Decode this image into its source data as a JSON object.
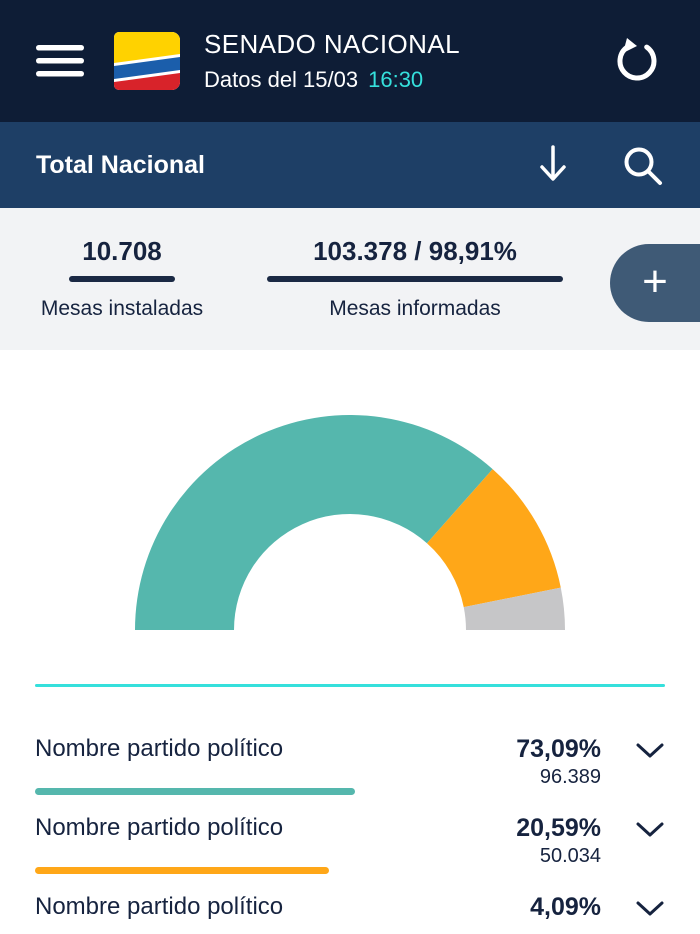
{
  "header": {
    "title": "SENADO NACIONAL",
    "subtitle": "Datos del 15/03",
    "time": "16:30"
  },
  "subheader": {
    "title": "Total Nacional"
  },
  "stats": {
    "installed": {
      "value": "10.708",
      "label": "Mesas instaladas"
    },
    "reported": {
      "value": "103.378 / 98,91%",
      "label": "Mesas informadas"
    },
    "add_label": "+"
  },
  "chart_data": {
    "type": "pie",
    "variant": "half-donut-gauge",
    "start_angle_deg": 180,
    "end_angle_deg": 0,
    "segments": [
      {
        "label": "Nombre partido político",
        "value": 73.09,
        "color": "#55b7ad"
      },
      {
        "label": "Nombre partido político",
        "value": 20.59,
        "color": "#ffa718"
      },
      {
        "label": "",
        "value": 6.32,
        "color": "#c6c6c8"
      }
    ]
  },
  "parties": [
    {
      "name": "Nombre partido político",
      "percent": "73,09%",
      "votes": "96.389",
      "color": "#55b7ad"
    },
    {
      "name": "Nombre partido político",
      "percent": "20,59%",
      "votes": "50.034",
      "color": "#ffa718"
    },
    {
      "name": "Nombre partido político",
      "percent": "4,09%",
      "votes": "",
      "color": "#c6c6c8"
    }
  ],
  "colors": {
    "header_bg": "#0e1d36",
    "subheader_bg": "#1e3f66",
    "stats_bg": "#f2f3f5",
    "accent_cyan": "#35e0dc",
    "text_navy": "#16233f",
    "underline_navy": "#1b2944",
    "plus_button_bg": "#3f5a76",
    "teal": "#55b7ad",
    "orange": "#ffa718",
    "gray": "#c6c6c8"
  }
}
